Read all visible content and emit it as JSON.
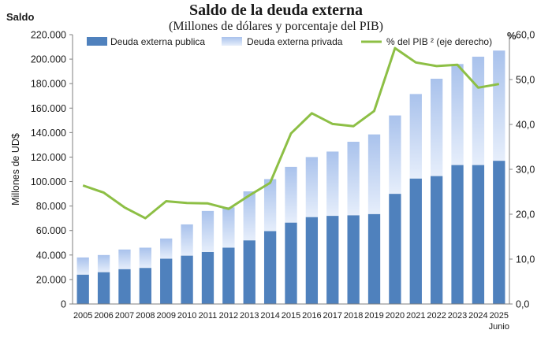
{
  "chart_data": {
    "type": "bar",
    "title": "Saldo de la deuda externa",
    "subtitle": "(Millones  de dólares y porcentaje del PIB)",
    "left_corner_label": "Saldo",
    "right_corner_label": "%",
    "ylabel": "Millones de UD$",
    "categories": [
      "2005",
      "2006",
      "2007",
      "2008",
      "2009",
      "2010",
      "2011",
      "2012",
      "2013",
      "2014",
      "2015",
      "2016",
      "2017",
      "2018",
      "2019",
      "2020",
      "2021",
      "2022",
      "2023",
      "2024",
      "2025"
    ],
    "category_sublabels": {
      "2025": "Junio"
    },
    "stacked": true,
    "y_left": {
      "ylim": [
        0,
        220000
      ],
      "ticks": [
        0,
        20000,
        40000,
        60000,
        80000,
        100000,
        120000,
        140000,
        160000,
        180000,
        200000,
        220000
      ],
      "tick_labels": [
        "0",
        "20.000",
        "40.000",
        "60.000",
        "80.000",
        "100.000",
        "120.000",
        "140.000",
        "160.000",
        "180.000",
        "200.000",
        "220.000"
      ]
    },
    "y_right": {
      "ylim": [
        0,
        60
      ],
      "ticks": [
        0,
        10,
        20,
        30,
        40,
        50,
        60
      ],
      "tick_labels": [
        "0,0",
        "10,0",
        "20,0",
        "30,0",
        "40,0",
        "50,0",
        "60,0"
      ]
    },
    "series": [
      {
        "name": "Deuda externa publica",
        "kind": "bar",
        "axis": "left",
        "color": "#4f81bd",
        "values": [
          24000,
          26000,
          28500,
          29500,
          37000,
          39500,
          42500,
          46000,
          52000,
          59500,
          66500,
          71000,
          72000,
          72500,
          73500,
          90000,
          102500,
          104500,
          113500,
          113500,
          117000
        ]
      },
      {
        "name": "Deuda externa privada",
        "kind": "bar",
        "axis": "left",
        "color": "#b8cdf0",
        "values": [
          14000,
          14000,
          16000,
          16500,
          16500,
          25500,
          33500,
          33000,
          40000,
          42500,
          45500,
          49000,
          52500,
          60000,
          65000,
          64000,
          69000,
          79500,
          82500,
          88500,
          90000
        ]
      },
      {
        "name": "% del PIB ² (eje derecho)",
        "kind": "line",
        "axis": "right",
        "color": "#8dbf45",
        "values": [
          26.4,
          24.8,
          21.5,
          19.1,
          22.9,
          22.5,
          22.4,
          21.2,
          24.2,
          27.0,
          38.0,
          42.5,
          40.1,
          39.6,
          43.0,
          57.0,
          53.8,
          53.0,
          53.3,
          48.2,
          49.0
        ]
      }
    ],
    "legend_placement": "top",
    "grid": false
  }
}
